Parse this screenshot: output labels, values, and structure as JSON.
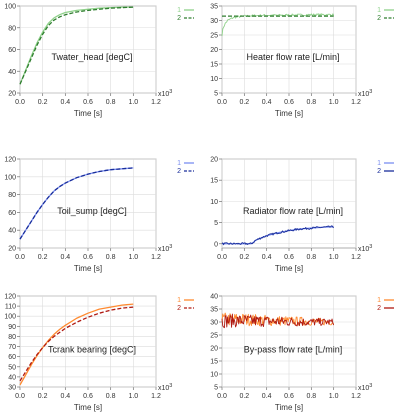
{
  "chart_data": [
    {
      "type": "line",
      "title": "Twater_head [degC]",
      "xlabel": "Time [s]",
      "x_multiplier": "x10",
      "x_multiplier_exp": "3",
      "xlim": [
        0,
        1.2
      ],
      "ylim": [
        20,
        100
      ],
      "xticks": [
        "0.0",
        "0.2",
        "0.4",
        "0.6",
        "0.8",
        "1.0",
        "1.2"
      ],
      "yticks": [
        "20",
        "40",
        "60",
        "80",
        "100"
      ],
      "grid": true,
      "legend_placement": "right",
      "series": [
        {
          "name": "1",
          "color": "#8fd18a",
          "style": "solid",
          "x": [
            0,
            0.05,
            0.1,
            0.15,
            0.2,
            0.25,
            0.3,
            0.35,
            0.4,
            0.5,
            0.6,
            0.7,
            0.8,
            0.9,
            1.0
          ],
          "y": [
            28,
            41,
            54,
            66,
            76,
            84,
            89,
            92,
            94,
            96,
            97,
            98,
            98.5,
            99,
            99
          ]
        },
        {
          "name": "2",
          "color": "#2f7d2f",
          "style": "dashed",
          "x": [
            0,
            0.05,
            0.1,
            0.15,
            0.2,
            0.25,
            0.3,
            0.35,
            0.4,
            0.5,
            0.6,
            0.7,
            0.8,
            0.9,
            1.0
          ],
          "y": [
            28,
            40,
            52,
            64,
            74,
            82,
            87,
            90,
            92,
            94.5,
            96,
            97,
            98,
            98.5,
            99
          ]
        }
      ]
    },
    {
      "type": "line",
      "title": "Heater flow rate [L/min]",
      "xlabel": "Time [s]",
      "x_multiplier": "x10",
      "x_multiplier_exp": "3",
      "xlim": [
        0,
        1.2
      ],
      "ylim": [
        5,
        35
      ],
      "xticks": [
        "0.0",
        "0.2",
        "0.4",
        "0.6",
        "0.8",
        "1.0",
        "1.2"
      ],
      "yticks": [
        "5",
        "10",
        "15",
        "20",
        "25",
        "30",
        "35"
      ],
      "grid": true,
      "legend_placement": "right",
      "series": [
        {
          "name": "1",
          "color": "#8fd18a",
          "style": "noisy",
          "x": [
            0,
            0.01,
            0.03,
            0.05,
            0.08,
            0.1,
            0.15,
            0.2,
            0.3,
            0.4,
            0.5,
            0.6,
            0.7,
            0.8,
            0.9,
            1.0
          ],
          "y": [
            25,
            27.5,
            29,
            30,
            30.6,
            31,
            31.3,
            31.5,
            31.7,
            31.8,
            31.8,
            31.9,
            31.9,
            32,
            32,
            32
          ]
        },
        {
          "name": "2",
          "color": "#2f7d2f",
          "style": "dashed",
          "x": [
            0,
            1.0
          ],
          "y": [
            31.5,
            31.5
          ]
        }
      ]
    },
    {
      "type": "line",
      "title": "Toil_sump [degC]",
      "xlabel": "Time [s]",
      "x_multiplier": "x10",
      "x_multiplier_exp": "3",
      "xlim": [
        0,
        1.2
      ],
      "ylim": [
        20,
        120
      ],
      "xticks": [
        "0.0",
        "0.2",
        "0.4",
        "0.6",
        "0.8",
        "1.0",
        "1.2"
      ],
      "yticks": [
        "20",
        "40",
        "60",
        "80",
        "100",
        "120"
      ],
      "grid": true,
      "legend_placement": "right",
      "series": [
        {
          "name": "1",
          "color": "#7b8ff0",
          "style": "solid",
          "x": [
            0,
            0.05,
            0.1,
            0.15,
            0.2,
            0.25,
            0.3,
            0.35,
            0.4,
            0.5,
            0.6,
            0.7,
            0.8,
            0.9,
            1.0
          ],
          "y": [
            30,
            40,
            50,
            60,
            69,
            77,
            84,
            89,
            93,
            99,
            103,
            106,
            108,
            109,
            110
          ]
        },
        {
          "name": "2",
          "color": "#1a2e9a",
          "style": "dashed",
          "x": [
            0,
            0.05,
            0.1,
            0.15,
            0.2,
            0.25,
            0.3,
            0.35,
            0.4,
            0.5,
            0.6,
            0.7,
            0.8,
            0.9,
            1.0
          ],
          "y": [
            30,
            40,
            50,
            60,
            69,
            77,
            84,
            89,
            93,
            99,
            103,
            106,
            108,
            109,
            110
          ]
        }
      ]
    },
    {
      "type": "line",
      "title": "Radiator flow rate [L/min]",
      "xlabel": "Time [s]",
      "x_multiplier": "x10",
      "x_multiplier_exp": "3",
      "xlim": [
        0,
        1.2
      ],
      "ylim": [
        -1,
        20
      ],
      "xticks": [
        "0.0",
        "0.2",
        "0.4",
        "0.6",
        "0.8",
        "1.0",
        "1.2"
      ],
      "yticks": [
        "0",
        "5",
        "10",
        "15",
        "20"
      ],
      "grid": true,
      "legend_placement": "right",
      "series": [
        {
          "name": "1",
          "color": "#7b8ff0",
          "style": "solid",
          "x": [
            0,
            0.26,
            0.28,
            0.3,
            0.35,
            0.4,
            0.5,
            0.6,
            0.7,
            0.8,
            0.9,
            1.0
          ],
          "y": [
            0,
            0,
            0.3,
            0.8,
            1.4,
            1.9,
            2.6,
            3.1,
            3.5,
            3.7,
            3.9,
            4.0
          ]
        },
        {
          "name": "2",
          "color": "#1a2e9a",
          "style": "noisy",
          "x": [
            0,
            0.26,
            0.28,
            0.3,
            0.35,
            0.4,
            0.5,
            0.6,
            0.7,
            0.8,
            0.9,
            1.0
          ],
          "y": [
            0,
            0,
            0.3,
            0.8,
            1.4,
            1.9,
            2.6,
            3.1,
            3.5,
            3.7,
            3.9,
            4.0
          ]
        }
      ]
    },
    {
      "type": "line",
      "title": "Tcrank bearing [degC]",
      "xlabel": "Time [s]",
      "x_multiplier": "x10",
      "x_multiplier_exp": "3",
      "xlim": [
        0,
        1.2
      ],
      "ylim": [
        30,
        120
      ],
      "xticks": [
        "0.0",
        "0.2",
        "0.4",
        "0.6",
        "0.8",
        "1.0",
        "1.2"
      ],
      "yticks": [
        "30",
        "40",
        "50",
        "60",
        "70",
        "80",
        "90",
        "100",
        "110",
        "120"
      ],
      "grid": true,
      "legend_placement": "right",
      "series": [
        {
          "name": "1",
          "color": "#ff8a30",
          "style": "solid",
          "x": [
            0,
            0.05,
            0.1,
            0.15,
            0.2,
            0.25,
            0.3,
            0.35,
            0.4,
            0.5,
            0.6,
            0.7,
            0.8,
            0.9,
            1.0
          ],
          "y": [
            32,
            42,
            52,
            61,
            69,
            76,
            82,
            87,
            91,
            98,
            103,
            107,
            109,
            111,
            112
          ]
        },
        {
          "name": "2",
          "color": "#b01a12",
          "style": "dashed",
          "x": [
            0,
            0.05,
            0.1,
            0.15,
            0.2,
            0.25,
            0.3,
            0.35,
            0.4,
            0.5,
            0.6,
            0.7,
            0.8,
            0.9,
            1.0
          ],
          "y": [
            36,
            45,
            54,
            62,
            69,
            75,
            80,
            84,
            88,
            94,
            99,
            103,
            106,
            108,
            109
          ]
        }
      ]
    },
    {
      "type": "line",
      "title": "By-pass flow rate [L/min]",
      "xlabel": "Time [s]",
      "x_multiplier": "x10",
      "x_multiplier_exp": "3",
      "xlim": [
        0,
        1.2
      ],
      "ylim": [
        5,
        40
      ],
      "xticks": [
        "0.0",
        "0.2",
        "0.4",
        "0.6",
        "0.8",
        "1.0",
        "1.2"
      ],
      "yticks": [
        "5",
        "10",
        "15",
        "20",
        "25",
        "30",
        "35",
        "40"
      ],
      "grid": true,
      "legend_placement": "right",
      "series": [
        {
          "name": "1",
          "color": "#ff8a30",
          "style": "noisy",
          "x": [
            0,
            0.1,
            0.2,
            0.3,
            0.4,
            0.5,
            0.6,
            0.7,
            0.8,
            0.9,
            1.0
          ],
          "y": [
            31,
            31,
            31,
            30.8,
            30.6,
            30.5,
            30.4,
            30.3,
            30.2,
            30.1,
            30
          ]
        },
        {
          "name": "2",
          "color": "#b01a12",
          "style": "noisy",
          "x": [
            0,
            0.1,
            0.2,
            0.3,
            0.4,
            0.5,
            0.6,
            0.7,
            0.8,
            0.9,
            1.0
          ],
          "y": [
            30.5,
            30.5,
            30.5,
            30.4,
            30.3,
            30.2,
            30.1,
            30,
            30,
            30,
            30
          ]
        }
      ]
    }
  ]
}
